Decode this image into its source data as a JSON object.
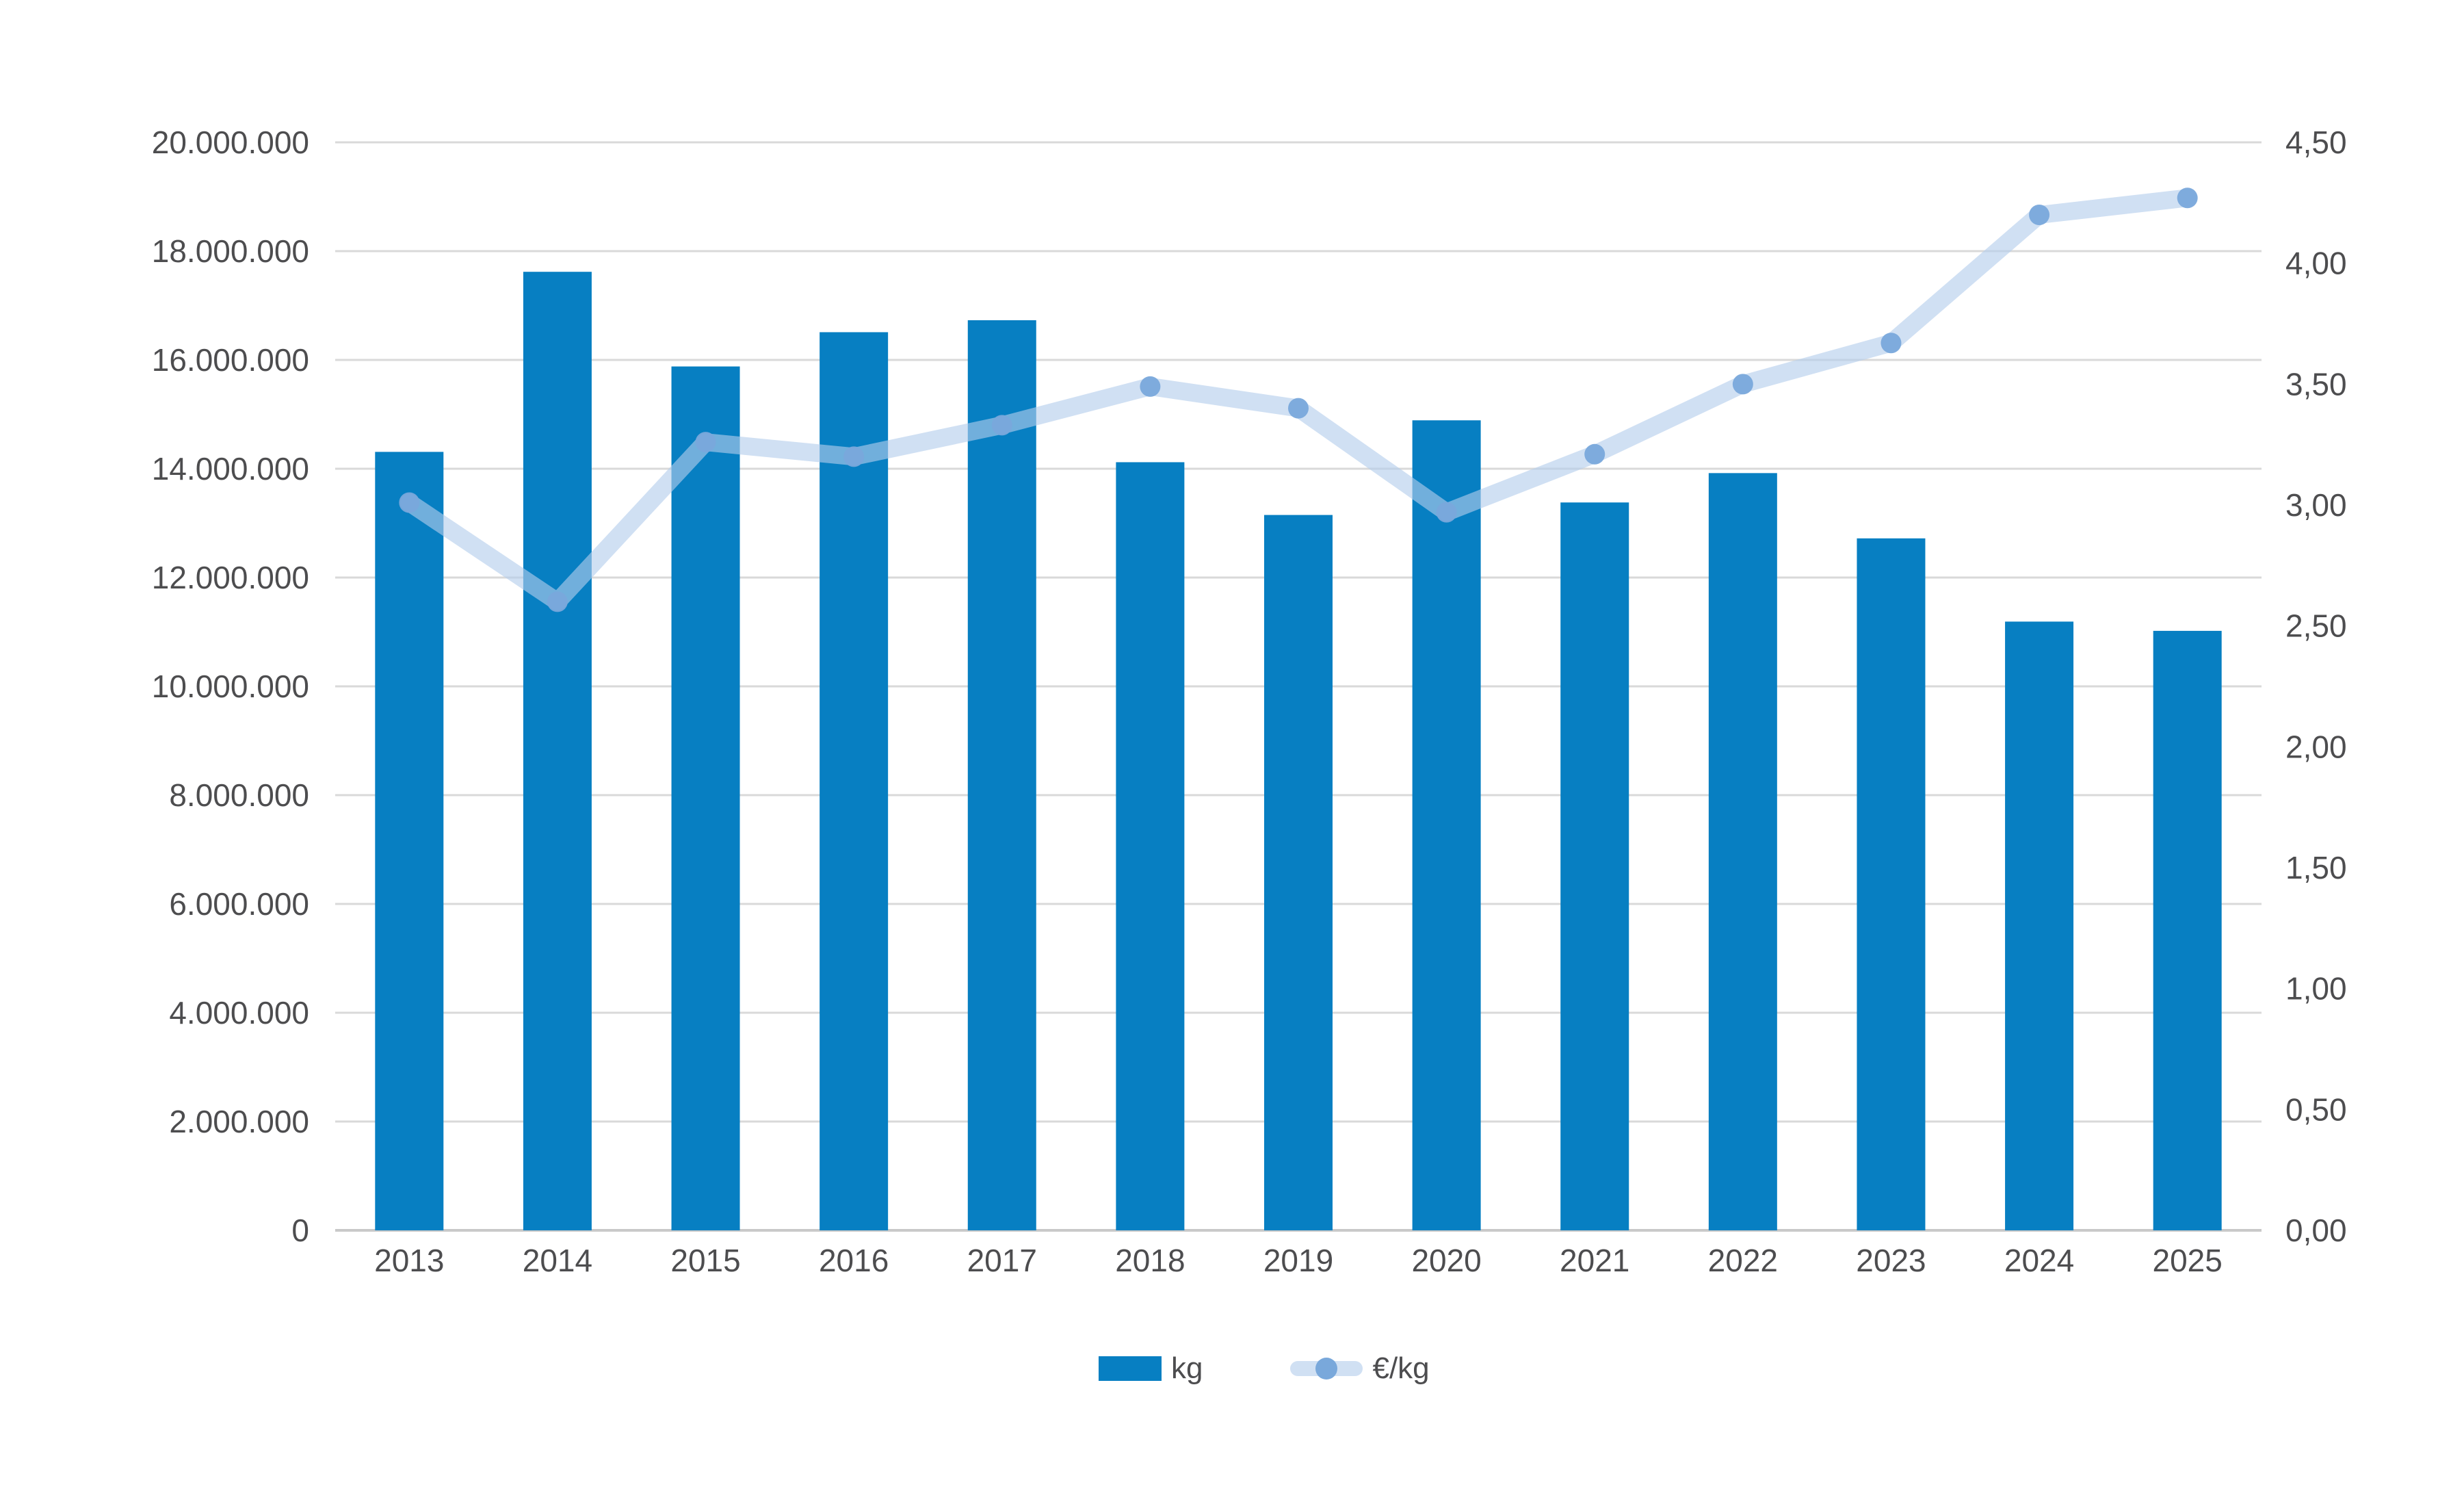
{
  "chart_data": {
    "type": "bar+line",
    "title": "",
    "categories": [
      "2013",
      "2014",
      "2015",
      "2016",
      "2017",
      "2018",
      "2019",
      "2020",
      "2021",
      "2022",
      "2023",
      "2024",
      "2025"
    ],
    "series": [
      {
        "name": "kg",
        "type": "bar",
        "axis": "left",
        "values": [
          14310000,
          17620000,
          15880000,
          16510000,
          16730000,
          14120000,
          13150000,
          14890000,
          13380000,
          13920000,
          12720000,
          11190000,
          11020000
        ]
      },
      {
        "name": "€/kg",
        "type": "line",
        "axis": "right",
        "values": [
          3.01,
          2.6,
          3.26,
          3.2,
          3.33,
          3.49,
          3.4,
          2.97,
          3.21,
          3.5,
          3.67,
          4.2,
          4.27
        ]
      }
    ],
    "left_axis": {
      "min": 0,
      "max": 20000000,
      "step": 2000000,
      "tick_labels": [
        "0",
        "2.000.000",
        "4.000.000",
        "6.000.000",
        "8.000.000",
        "10.000.000",
        "12.000.000",
        "14.000.000",
        "16.000.000",
        "18.000.000",
        "20.000.000"
      ]
    },
    "right_axis": {
      "min": 0,
      "max": 4.5,
      "step": 0.5,
      "tick_labels": [
        "0,00",
        "0,50",
        "1,00",
        "1,50",
        "2,00",
        "2,50",
        "3,00",
        "3,50",
        "4,00",
        "4,50"
      ]
    },
    "grid": true,
    "legend_position": "bottom",
    "legend": {
      "kg": "kg",
      "eur": "€/kg"
    }
  },
  "colors": {
    "bar": "#077fc2",
    "line": "#b3cdec",
    "line_opacity": 0.62,
    "marker": "#79a8db",
    "marker_opacity": 0.95,
    "grid": "#d9d9d9",
    "axis_line": "#c9c9c9",
    "text": "#4d4d4f",
    "background": "#ffffff"
  }
}
